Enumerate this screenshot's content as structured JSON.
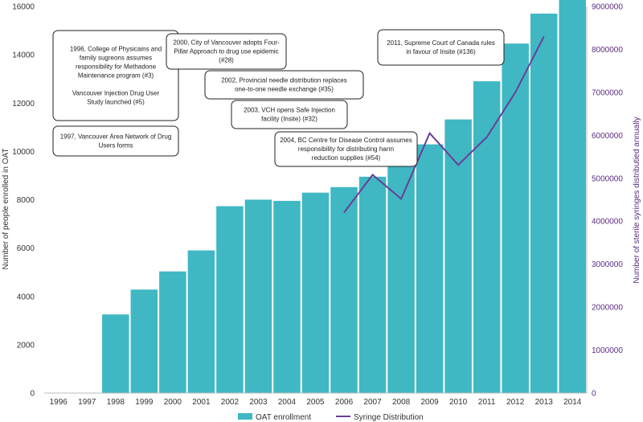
{
  "chart_data": {
    "type": "bar",
    "categories": [
      "1996",
      "1997",
      "1998",
      "1999",
      "2000",
      "2001",
      "2002",
      "2003",
      "2004",
      "2005",
      "2006",
      "2007",
      "2008",
      "2009",
      "2010",
      "2011",
      "2012",
      "2013",
      "2014"
    ],
    "series": [
      {
        "name": "OAT enrollment",
        "type": "bar",
        "axis": "left",
        "color": "#3fb8c3",
        "values": [
          null,
          null,
          3270,
          4300,
          5050,
          5920,
          7750,
          8020,
          7970,
          8310,
          8540,
          8970,
          9440,
          10310,
          11340,
          12920,
          14480,
          15720,
          16700
        ]
      },
      {
        "name": "Syringe Distribution",
        "type": "line",
        "axis": "right",
        "color": "#6a3d9a",
        "values": [
          null,
          null,
          null,
          null,
          null,
          null,
          null,
          null,
          null,
          null,
          4200000,
          5080000,
          4520000,
          6050000,
          5310000,
          5960000,
          7000000,
          8300000,
          null
        ]
      }
    ],
    "ylabel": "Number of people enrolled in OAT",
    "ylabel_right": "Number of sterile syringes distributied annually",
    "ylim": [
      0,
      16000
    ],
    "ylim_right": [
      0,
      9000000
    ],
    "yticks": [
      "0",
      "2000",
      "4000",
      "6000",
      "8000",
      "10000",
      "12000",
      "14000",
      "16000"
    ],
    "yticks_right": [
      "0",
      "1000000",
      "2000000",
      "3000000",
      "4000000",
      "5000000",
      "6000000",
      "7000000",
      "8000000",
      "9000000"
    ],
    "annotations": [
      {
        "id": "a1996",
        "lines": [
          "1996, College of Physicains and",
          "family sugreons assumes",
          "responsibility  for Methadone",
          "Maintenance program (#3)",
          "",
          "Vancouver Injection Drug User",
          "Study  launched (#5)"
        ]
      },
      {
        "id": "a1997",
        "lines": [
          "1997, Vancouver Area Network  of Drug",
          "Users forms"
        ]
      },
      {
        "id": "a2000",
        "lines": [
          "2000, City of Vancouver adopts Four-",
          "Pillar Approach to drug use epidemic",
          "(#28)"
        ]
      },
      {
        "id": "a2002",
        "lines": [
          "2002, Provincial needle distribution  replaces",
          "one-to-one needle exchange (#35)"
        ]
      },
      {
        "id": "a2003",
        "lines": [
          "2003,  VCH opens Safe Injection",
          "facility  (Insite) (#32)"
        ]
      },
      {
        "id": "a2004",
        "lines": [
          "2004, BC Centre for Disease Control  assumes",
          "responsibility  for distributing  harm",
          "reduction  supplies (#54)"
        ]
      },
      {
        "id": "a2011",
        "lines": [
          "2011, Supreme Court of Canada rules",
          "in favour of Insite (#136)"
        ]
      }
    ],
    "legend": [
      "OAT enrollment",
      "Syringe Distribution"
    ],
    "legend_position": "bottom"
  }
}
